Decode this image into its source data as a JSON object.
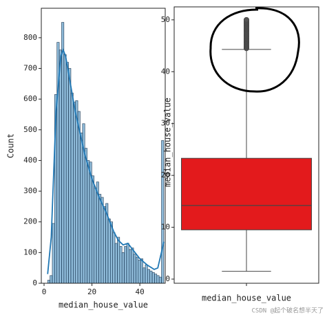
{
  "chart_data": [
    {
      "type": "histogram",
      "xlabel": "median_house_value",
      "ylabel": "Count",
      "bins": [
        1.5,
        2.47,
        3.44,
        4.41,
        5.38,
        6.35,
        7.32,
        8.29,
        9.26,
        10.23,
        11.2,
        12.17,
        13.14,
        14.11,
        15.08,
        16.05,
        17.02,
        17.99,
        18.96,
        19.93,
        20.9,
        21.87,
        22.84,
        23.81,
        24.78,
        25.75,
        26.72,
        27.69,
        28.66,
        29.63,
        30.6,
        31.57,
        32.54,
        33.51,
        34.48,
        35.45,
        36.42,
        37.39,
        38.36,
        39.33,
        40.3,
        41.27,
        42.24,
        43.21,
        44.18,
        45.15,
        46.12,
        47.09,
        48.06,
        49.03,
        50.0
      ],
      "values": [
        10,
        25,
        195,
        615,
        785,
        760,
        850,
        745,
        720,
        700,
        620,
        590,
        595,
        560,
        490,
        520,
        440,
        400,
        395,
        350,
        310,
        330,
        290,
        280,
        250,
        260,
        210,
        200,
        165,
        130,
        150,
        120,
        100,
        120,
        130,
        110,
        115,
        95,
        85,
        75,
        80,
        50,
        60,
        45,
        40,
        35,
        30,
        25,
        20,
        465
      ],
      "color": "#1f77b4",
      "kde_x": [
        1.5,
        3,
        5,
        7,
        8,
        9,
        11,
        13,
        15,
        17,
        20,
        23,
        26,
        29,
        31,
        33,
        35,
        37,
        40,
        43,
        46,
        47.5,
        49,
        50
      ],
      "kde_y": [
        30,
        150,
        560,
        740,
        760,
        740,
        650,
        560,
        490,
        420,
        340,
        280,
        230,
        170,
        140,
        125,
        130,
        110,
        80,
        60,
        45,
        50,
        100,
        135
      ],
      "xlim": [
        -1.15,
        50.6
      ],
      "xticks": [
        0,
        20,
        40
      ],
      "ylim": [
        0,
        896
      ],
      "yticks": [
        0,
        100,
        200,
        300,
        400,
        500,
        600,
        700,
        800
      ]
    },
    {
      "type": "box",
      "categories": [
        "median_house_value"
      ],
      "ylabel": "median_house_value",
      "whislo": 1.5,
      "q1": 9.5,
      "median": 14.2,
      "q3": 23.3,
      "whishi": 44.3,
      "fliers": [
        44.5,
        44.75,
        45,
        45.25,
        45.5,
        45.75,
        46,
        46.25,
        46.5,
        46.75,
        47,
        47.25,
        47.5,
        47.75,
        48,
        48.25,
        48.5,
        48.75,
        49,
        49.25,
        49.5,
        49.75,
        50
      ],
      "color": "#e31a1c",
      "ylim": [
        -0.8,
        52.5
      ],
      "yticks": [
        0,
        10,
        20,
        30,
        40,
        50
      ]
    }
  ],
  "watermark": "CSDN @起个破名想半天了"
}
